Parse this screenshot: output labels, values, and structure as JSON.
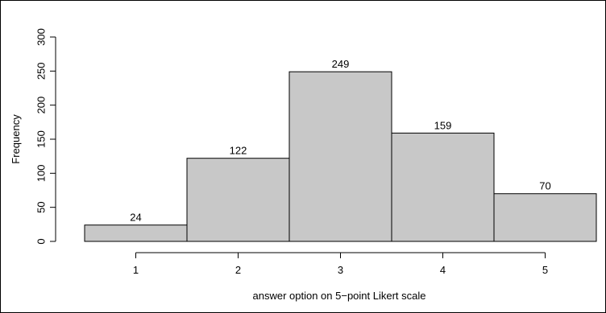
{
  "chart_data": {
    "type": "bar",
    "title": "",
    "xlabel": "answer option on 5−point Likert scale",
    "ylabel": "Frequency",
    "categories": [
      "1",
      "2",
      "3",
      "4",
      "5"
    ],
    "values": [
      24,
      122,
      249,
      159,
      70
    ],
    "data_labels": [
      "24",
      "122",
      "249",
      "159",
      "70"
    ],
    "ylim": [
      0,
      300
    ],
    "yticks": [
      0,
      50,
      100,
      150,
      200,
      250,
      300
    ],
    "grid": false,
    "legend": "none",
    "colors": {
      "bar_fill": "#c8c8c8",
      "bar_stroke": "#000000",
      "axis": "#000000"
    }
  }
}
